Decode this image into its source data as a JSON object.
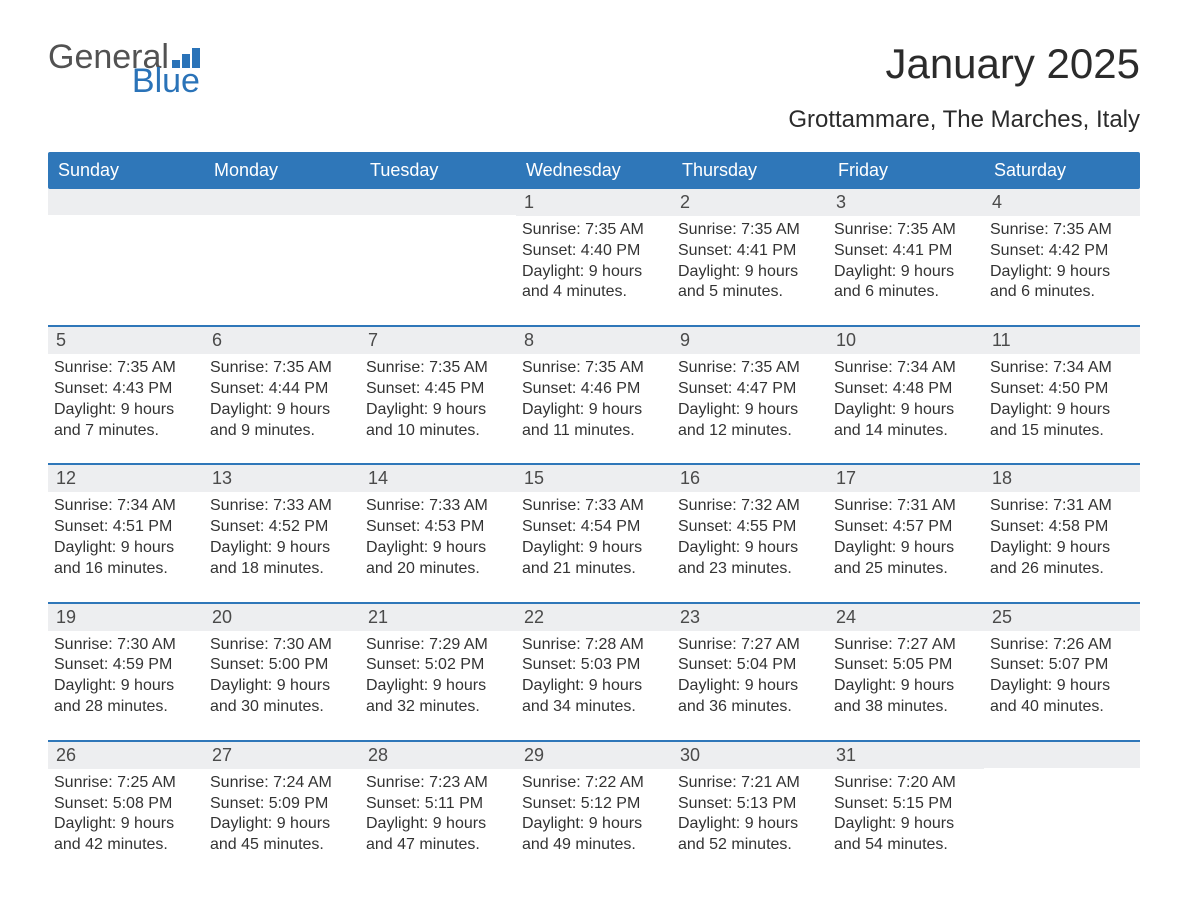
{
  "logo": {
    "general": "General",
    "blue": "Blue"
  },
  "title": "January 2025",
  "subtitle": "Grottammare, The Marches, Italy",
  "colors": {
    "brand_blue": "#2f77b9",
    "logo_blue": "#2a73b8",
    "daynum_bg": "#edeef0",
    "text": "#333333",
    "title_text": "#2b2b2b"
  },
  "day_headers": [
    "Sunday",
    "Monday",
    "Tuesday",
    "Wednesday",
    "Thursday",
    "Friday",
    "Saturday"
  ],
  "weeks": [
    [
      null,
      null,
      null,
      {
        "n": "1",
        "sr": "Sunrise: 7:35 AM",
        "ss": "Sunset: 4:40 PM",
        "d1": "Daylight: 9 hours",
        "d2": "and 4 minutes."
      },
      {
        "n": "2",
        "sr": "Sunrise: 7:35 AM",
        "ss": "Sunset: 4:41 PM",
        "d1": "Daylight: 9 hours",
        "d2": "and 5 minutes."
      },
      {
        "n": "3",
        "sr": "Sunrise: 7:35 AM",
        "ss": "Sunset: 4:41 PM",
        "d1": "Daylight: 9 hours",
        "d2": "and 6 minutes."
      },
      {
        "n": "4",
        "sr": "Sunrise: 7:35 AM",
        "ss": "Sunset: 4:42 PM",
        "d1": "Daylight: 9 hours",
        "d2": "and 6 minutes."
      }
    ],
    [
      {
        "n": "5",
        "sr": "Sunrise: 7:35 AM",
        "ss": "Sunset: 4:43 PM",
        "d1": "Daylight: 9 hours",
        "d2": "and 7 minutes."
      },
      {
        "n": "6",
        "sr": "Sunrise: 7:35 AM",
        "ss": "Sunset: 4:44 PM",
        "d1": "Daylight: 9 hours",
        "d2": "and 9 minutes."
      },
      {
        "n": "7",
        "sr": "Sunrise: 7:35 AM",
        "ss": "Sunset: 4:45 PM",
        "d1": "Daylight: 9 hours",
        "d2": "and 10 minutes."
      },
      {
        "n": "8",
        "sr": "Sunrise: 7:35 AM",
        "ss": "Sunset: 4:46 PM",
        "d1": "Daylight: 9 hours",
        "d2": "and 11 minutes."
      },
      {
        "n": "9",
        "sr": "Sunrise: 7:35 AM",
        "ss": "Sunset: 4:47 PM",
        "d1": "Daylight: 9 hours",
        "d2": "and 12 minutes."
      },
      {
        "n": "10",
        "sr": "Sunrise: 7:34 AM",
        "ss": "Sunset: 4:48 PM",
        "d1": "Daylight: 9 hours",
        "d2": "and 14 minutes."
      },
      {
        "n": "11",
        "sr": "Sunrise: 7:34 AM",
        "ss": "Sunset: 4:50 PM",
        "d1": "Daylight: 9 hours",
        "d2": "and 15 minutes."
      }
    ],
    [
      {
        "n": "12",
        "sr": "Sunrise: 7:34 AM",
        "ss": "Sunset: 4:51 PM",
        "d1": "Daylight: 9 hours",
        "d2": "and 16 minutes."
      },
      {
        "n": "13",
        "sr": "Sunrise: 7:33 AM",
        "ss": "Sunset: 4:52 PM",
        "d1": "Daylight: 9 hours",
        "d2": "and 18 minutes."
      },
      {
        "n": "14",
        "sr": "Sunrise: 7:33 AM",
        "ss": "Sunset: 4:53 PM",
        "d1": "Daylight: 9 hours",
        "d2": "and 20 minutes."
      },
      {
        "n": "15",
        "sr": "Sunrise: 7:33 AM",
        "ss": "Sunset: 4:54 PM",
        "d1": "Daylight: 9 hours",
        "d2": "and 21 minutes."
      },
      {
        "n": "16",
        "sr": "Sunrise: 7:32 AM",
        "ss": "Sunset: 4:55 PM",
        "d1": "Daylight: 9 hours",
        "d2": "and 23 minutes."
      },
      {
        "n": "17",
        "sr": "Sunrise: 7:31 AM",
        "ss": "Sunset: 4:57 PM",
        "d1": "Daylight: 9 hours",
        "d2": "and 25 minutes."
      },
      {
        "n": "18",
        "sr": "Sunrise: 7:31 AM",
        "ss": "Sunset: 4:58 PM",
        "d1": "Daylight: 9 hours",
        "d2": "and 26 minutes."
      }
    ],
    [
      {
        "n": "19",
        "sr": "Sunrise: 7:30 AM",
        "ss": "Sunset: 4:59 PM",
        "d1": "Daylight: 9 hours",
        "d2": "and 28 minutes."
      },
      {
        "n": "20",
        "sr": "Sunrise: 7:30 AM",
        "ss": "Sunset: 5:00 PM",
        "d1": "Daylight: 9 hours",
        "d2": "and 30 minutes."
      },
      {
        "n": "21",
        "sr": "Sunrise: 7:29 AM",
        "ss": "Sunset: 5:02 PM",
        "d1": "Daylight: 9 hours",
        "d2": "and 32 minutes."
      },
      {
        "n": "22",
        "sr": "Sunrise: 7:28 AM",
        "ss": "Sunset: 5:03 PM",
        "d1": "Daylight: 9 hours",
        "d2": "and 34 minutes."
      },
      {
        "n": "23",
        "sr": "Sunrise: 7:27 AM",
        "ss": "Sunset: 5:04 PM",
        "d1": "Daylight: 9 hours",
        "d2": "and 36 minutes."
      },
      {
        "n": "24",
        "sr": "Sunrise: 7:27 AM",
        "ss": "Sunset: 5:05 PM",
        "d1": "Daylight: 9 hours",
        "d2": "and 38 minutes."
      },
      {
        "n": "25",
        "sr": "Sunrise: 7:26 AM",
        "ss": "Sunset: 5:07 PM",
        "d1": "Daylight: 9 hours",
        "d2": "and 40 minutes."
      }
    ],
    [
      {
        "n": "26",
        "sr": "Sunrise: 7:25 AM",
        "ss": "Sunset: 5:08 PM",
        "d1": "Daylight: 9 hours",
        "d2": "and 42 minutes."
      },
      {
        "n": "27",
        "sr": "Sunrise: 7:24 AM",
        "ss": "Sunset: 5:09 PM",
        "d1": "Daylight: 9 hours",
        "d2": "and 45 minutes."
      },
      {
        "n": "28",
        "sr": "Sunrise: 7:23 AM",
        "ss": "Sunset: 5:11 PM",
        "d1": "Daylight: 9 hours",
        "d2": "and 47 minutes."
      },
      {
        "n": "29",
        "sr": "Sunrise: 7:22 AM",
        "ss": "Sunset: 5:12 PM",
        "d1": "Daylight: 9 hours",
        "d2": "and 49 minutes."
      },
      {
        "n": "30",
        "sr": "Sunrise: 7:21 AM",
        "ss": "Sunset: 5:13 PM",
        "d1": "Daylight: 9 hours",
        "d2": "and 52 minutes."
      },
      {
        "n": "31",
        "sr": "Sunrise: 7:20 AM",
        "ss": "Sunset: 5:15 PM",
        "d1": "Daylight: 9 hours",
        "d2": "and 54 minutes."
      },
      null
    ]
  ]
}
